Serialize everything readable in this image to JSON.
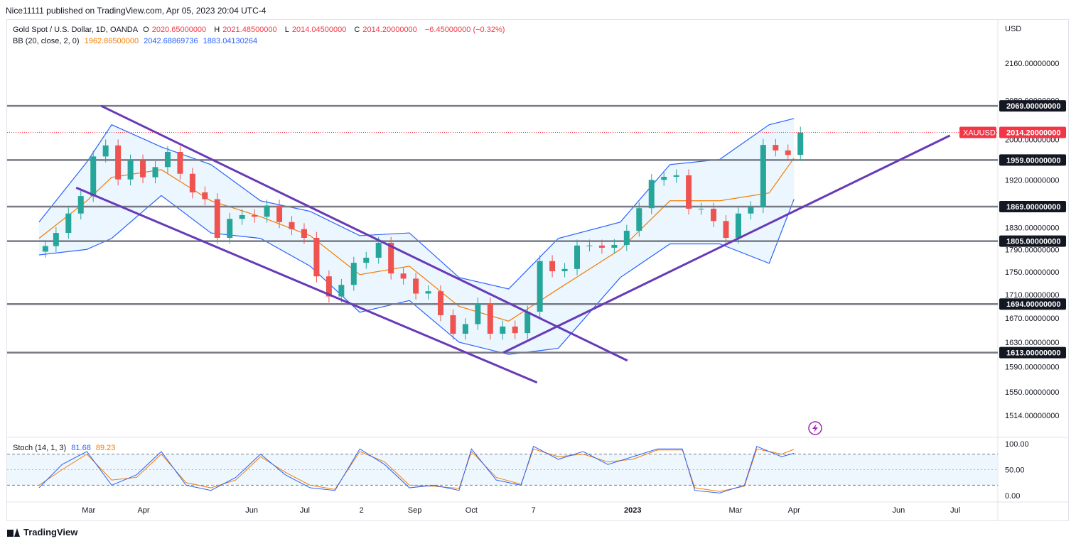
{
  "header": {
    "publisher": "Nice11111 published on TradingView.com, Apr 05, 2023 20:04 UTC-4"
  },
  "legend": {
    "symbol": "Gold Spot / U.S. Dollar, 1D, OANDA",
    "ohlc": {
      "o_label": "O",
      "o": "2020.65000000",
      "h_label": "H",
      "h": "2021.48500000",
      "l_label": "L",
      "l": "2014.04500000",
      "c_label": "C",
      "c": "2014.20000000",
      "change": "−6.45000000 (−0.32%)"
    },
    "bb_label": "BB (20, close, 2, 0)",
    "bb_basis": "1962.86500000",
    "bb_upper": "2042.68869736",
    "bb_lower": "1883.04130264",
    "stoch_label": "Stoch (14, 1, 3)",
    "stoch_k": "81.68",
    "stoch_d": "89.23"
  },
  "footer": {
    "brand": "TradingView"
  },
  "colors": {
    "up": "#26a69a",
    "down": "#ef5350",
    "basis": "#f57c00",
    "bands": "#2962ff",
    "band_fill": "#e3f2fd",
    "channel": "#673ab7",
    "hline": "#787b86",
    "price_label": "#f23645",
    "level_label_bg": "#131722"
  },
  "chart_data": {
    "type": "line",
    "title": "Gold Spot / U.S. Dollar, 1D, OANDA",
    "currency": "USD",
    "y_axis": {
      "ticks": [
        2160,
        2080,
        2000,
        1920,
        1830,
        1790,
        1750,
        1710,
        1670,
        1630,
        1590,
        1550,
        1514
      ],
      "tick_labels": [
        "2160.00000000",
        "2080.00000000",
        "2000.00000000",
        "1920.00000000",
        "1830.00000000",
        "1790.00000000",
        "1750.00000000",
        "1710.00000000",
        "1670.00000000",
        "1630.00000000",
        "1590.00000000",
        "1550.00000000",
        "1514.00000000"
      ],
      "scale": "log"
    },
    "x_axis": {
      "tick_labels": [
        "Mar",
        "Apr",
        "Jun",
        "Jul",
        "2",
        "Sep",
        "Oct",
        "7",
        "2023",
        "Mar",
        "Apr",
        "Jun",
        "Jul"
      ],
      "tick_dates": [
        "2022-03-01",
        "2022-04-01",
        "2022-06-01",
        "2022-07-01",
        "2022-08-02",
        "2022-09-01",
        "2022-10-03",
        "2022-11-07",
        "2023-01-02",
        "2023-03-01",
        "2023-04-03",
        "2023-06-01",
        "2023-07-03"
      ]
    },
    "horizontal_levels": [
      {
        "value": 2069,
        "label": "2069.00000000"
      },
      {
        "value": 1959,
        "label": "1959.00000000"
      },
      {
        "value": 1869,
        "label": "1869.00000000"
      },
      {
        "value": 1805,
        "label": "1805.00000000"
      },
      {
        "value": 1694,
        "label": "1694.00000000"
      },
      {
        "value": 1613,
        "label": "1613.00000000"
      }
    ],
    "last_price": {
      "symbol": "XAUUSD",
      "value": 2014.2,
      "label": "2014.20000000"
    },
    "trendlines": [
      {
        "name": "channel-upper",
        "from": [
          "2022-03-08",
          2069
        ],
        "to": [
          "2022-12-30",
          1600
        ]
      },
      {
        "name": "channel-lower",
        "from": [
          "2022-02-22",
          1905
        ],
        "to": [
          "2022-11-09",
          1565
        ]
      },
      {
        "name": "uptrend",
        "from": [
          "2022-10-21",
          1613
        ],
        "to": [
          "2023-06-30",
          2008
        ]
      }
    ],
    "close": [
      [
        "2022-02-01",
        1796
      ],
      [
        "2022-02-07",
        1820
      ],
      [
        "2022-02-14",
        1856
      ],
      [
        "2022-02-21",
        1889
      ],
      [
        "2022-02-28",
        1966
      ],
      [
        "2022-03-07",
        1988
      ],
      [
        "2022-03-14",
        1921
      ],
      [
        "2022-03-21",
        1958
      ],
      [
        "2022-03-28",
        1925
      ],
      [
        "2022-04-04",
        1945
      ],
      [
        "2022-04-11",
        1975
      ],
      [
        "2022-04-18",
        1932
      ],
      [
        "2022-04-25",
        1896
      ],
      [
        "2022-05-02",
        1883
      ],
      [
        "2022-05-09",
        1811
      ],
      [
        "2022-05-16",
        1846
      ],
      [
        "2022-05-23",
        1853
      ],
      [
        "2022-05-30",
        1850
      ],
      [
        "2022-06-06",
        1871
      ],
      [
        "2022-06-13",
        1840
      ],
      [
        "2022-06-20",
        1827
      ],
      [
        "2022-06-27",
        1811
      ],
      [
        "2022-07-04",
        1742
      ],
      [
        "2022-07-11",
        1707
      ],
      [
        "2022-07-18",
        1727
      ],
      [
        "2022-07-25",
        1766
      ],
      [
        "2022-08-01",
        1775
      ],
      [
        "2022-08-08",
        1802
      ],
      [
        "2022-08-15",
        1747
      ],
      [
        "2022-08-22",
        1738
      ],
      [
        "2022-08-29",
        1712
      ],
      [
        "2022-09-05",
        1716
      ],
      [
        "2022-09-12",
        1675
      ],
      [
        "2022-09-19",
        1644
      ],
      [
        "2022-09-26",
        1660
      ],
      [
        "2022-10-03",
        1695
      ],
      [
        "2022-10-10",
        1644
      ],
      [
        "2022-10-17",
        1656
      ],
      [
        "2022-10-24",
        1645
      ],
      [
        "2022-10-31",
        1681
      ],
      [
        "2022-11-07",
        1769
      ],
      [
        "2022-11-14",
        1751
      ],
      [
        "2022-11-21",
        1755
      ],
      [
        "2022-11-28",
        1797
      ],
      [
        "2022-12-05",
        1797
      ],
      [
        "2022-12-12",
        1793
      ],
      [
        "2022-12-19",
        1798
      ],
      [
        "2022-12-26",
        1824
      ],
      [
        "2023-01-02",
        1866
      ],
      [
        "2023-01-09",
        1920
      ],
      [
        "2023-01-16",
        1926
      ],
      [
        "2023-01-23",
        1929
      ],
      [
        "2023-01-30",
        1865
      ],
      [
        "2023-02-06",
        1865
      ],
      [
        "2023-02-13",
        1842
      ],
      [
        "2023-02-20",
        1811
      ],
      [
        "2023-02-27",
        1856
      ],
      [
        "2023-03-06",
        1868
      ],
      [
        "2023-03-13",
        1989
      ],
      [
        "2023-03-20",
        1978
      ],
      [
        "2023-03-27",
        1969
      ],
      [
        "2023-04-03",
        2014
      ]
    ],
    "bollinger": {
      "period": 20,
      "std": 2,
      "basis": [
        [
          "2022-02-01",
          1810
        ],
        [
          "2022-02-28",
          1880
        ],
        [
          "2022-03-14",
          1925
        ],
        [
          "2022-04-11",
          1940
        ],
        [
          "2022-05-09",
          1880
        ],
        [
          "2022-06-06",
          1850
        ],
        [
          "2022-07-04",
          1815
        ],
        [
          "2022-08-01",
          1745
        ],
        [
          "2022-08-29",
          1760
        ],
        [
          "2022-09-26",
          1690
        ],
        [
          "2022-10-24",
          1665
        ],
        [
          "2022-11-21",
          1720
        ],
        [
          "2022-12-26",
          1790
        ],
        [
          "2023-01-23",
          1880
        ],
        [
          "2023-02-20",
          1880
        ],
        [
          "2023-03-20",
          1895
        ],
        [
          "2023-04-03",
          1962.9
        ]
      ],
      "upper": [
        [
          "2022-02-01",
          1840
        ],
        [
          "2022-02-28",
          1955
        ],
        [
          "2022-03-14",
          2030
        ],
        [
          "2022-04-11",
          1985
        ],
        [
          "2022-05-09",
          1950
        ],
        [
          "2022-06-06",
          1880
        ],
        [
          "2022-07-04",
          1860
        ],
        [
          "2022-08-01",
          1815
        ],
        [
          "2022-08-29",
          1820
        ],
        [
          "2022-09-26",
          1740
        ],
        [
          "2022-10-24",
          1720
        ],
        [
          "2022-11-21",
          1810
        ],
        [
          "2022-12-26",
          1840
        ],
        [
          "2023-01-23",
          1950
        ],
        [
          "2023-02-20",
          1960
        ],
        [
          "2023-03-20",
          2030
        ],
        [
          "2023-04-03",
          2042.7
        ]
      ],
      "lower": [
        [
          "2022-02-01",
          1780
        ],
        [
          "2022-02-28",
          1790
        ],
        [
          "2022-03-14",
          1810
        ],
        [
          "2022-04-11",
          1890
        ],
        [
          "2022-05-09",
          1820
        ],
        [
          "2022-06-06",
          1810
        ],
        [
          "2022-07-04",
          1760
        ],
        [
          "2022-08-01",
          1680
        ],
        [
          "2022-08-29",
          1700
        ],
        [
          "2022-09-26",
          1630
        ],
        [
          "2022-10-24",
          1610
        ],
        [
          "2022-11-21",
          1620
        ],
        [
          "2022-12-26",
          1740
        ],
        [
          "2023-01-23",
          1800
        ],
        [
          "2023-02-20",
          1800
        ],
        [
          "2023-03-20",
          1765
        ],
        [
          "2023-04-03",
          1883.0
        ]
      ]
    },
    "stochastic": {
      "ticks": [
        100,
        50,
        0
      ],
      "tick_labels": [
        "100.00",
        "50.00",
        "0.00"
      ],
      "bands": [
        80,
        20
      ],
      "k": [
        [
          "2022-02-01",
          15
        ],
        [
          "2022-02-14",
          60
        ],
        [
          "2022-02-28",
          85
        ],
        [
          "2022-03-14",
          20
        ],
        [
          "2022-03-28",
          40
        ],
        [
          "2022-04-11",
          85
        ],
        [
          "2022-04-25",
          20
        ],
        [
          "2022-05-09",
          10
        ],
        [
          "2022-05-23",
          35
        ],
        [
          "2022-06-06",
          80
        ],
        [
          "2022-06-20",
          40
        ],
        [
          "2022-07-04",
          15
        ],
        [
          "2022-07-18",
          10
        ],
        [
          "2022-08-01",
          90
        ],
        [
          "2022-08-15",
          60
        ],
        [
          "2022-08-29",
          15
        ],
        [
          "2022-09-12",
          20
        ],
        [
          "2022-09-26",
          10
        ],
        [
          "2022-10-03",
          90
        ],
        [
          "2022-10-17",
          30
        ],
        [
          "2022-10-31",
          20
        ],
        [
          "2022-11-07",
          95
        ],
        [
          "2022-11-21",
          70
        ],
        [
          "2022-12-05",
          85
        ],
        [
          "2022-12-19",
          60
        ],
        [
          "2023-01-02",
          75
        ],
        [
          "2023-01-16",
          90
        ],
        [
          "2023-01-30",
          90
        ],
        [
          "2023-02-06",
          10
        ],
        [
          "2023-02-20",
          5
        ],
        [
          "2023-03-06",
          20
        ],
        [
          "2023-03-13",
          95
        ],
        [
          "2023-03-27",
          75
        ],
        [
          "2023-04-03",
          81.68
        ]
      ],
      "d": [
        [
          "2022-02-01",
          20
        ],
        [
          "2022-02-14",
          50
        ],
        [
          "2022-02-28",
          80
        ],
        [
          "2022-03-14",
          30
        ],
        [
          "2022-03-28",
          35
        ],
        [
          "2022-04-11",
          80
        ],
        [
          "2022-04-25",
          25
        ],
        [
          "2022-05-09",
          15
        ],
        [
          "2022-05-23",
          30
        ],
        [
          "2022-06-06",
          75
        ],
        [
          "2022-06-20",
          45
        ],
        [
          "2022-07-04",
          20
        ],
        [
          "2022-07-18",
          12
        ],
        [
          "2022-08-01",
          85
        ],
        [
          "2022-08-15",
          65
        ],
        [
          "2022-08-29",
          20
        ],
        [
          "2022-09-12",
          18
        ],
        [
          "2022-09-26",
          14
        ],
        [
          "2022-10-03",
          85
        ],
        [
          "2022-10-17",
          35
        ],
        [
          "2022-10-31",
          22
        ],
        [
          "2022-11-07",
          90
        ],
        [
          "2022-11-21",
          75
        ],
        [
          "2022-12-05",
          80
        ],
        [
          "2022-12-19",
          65
        ],
        [
          "2023-01-02",
          70
        ],
        [
          "2023-01-16",
          88
        ],
        [
          "2023-01-30",
          88
        ],
        [
          "2023-02-06",
          15
        ],
        [
          "2023-02-20",
          8
        ],
        [
          "2023-03-06",
          18
        ],
        [
          "2023-03-13",
          90
        ],
        [
          "2023-03-27",
          80
        ],
        [
          "2023-04-03",
          89.23
        ]
      ]
    }
  }
}
